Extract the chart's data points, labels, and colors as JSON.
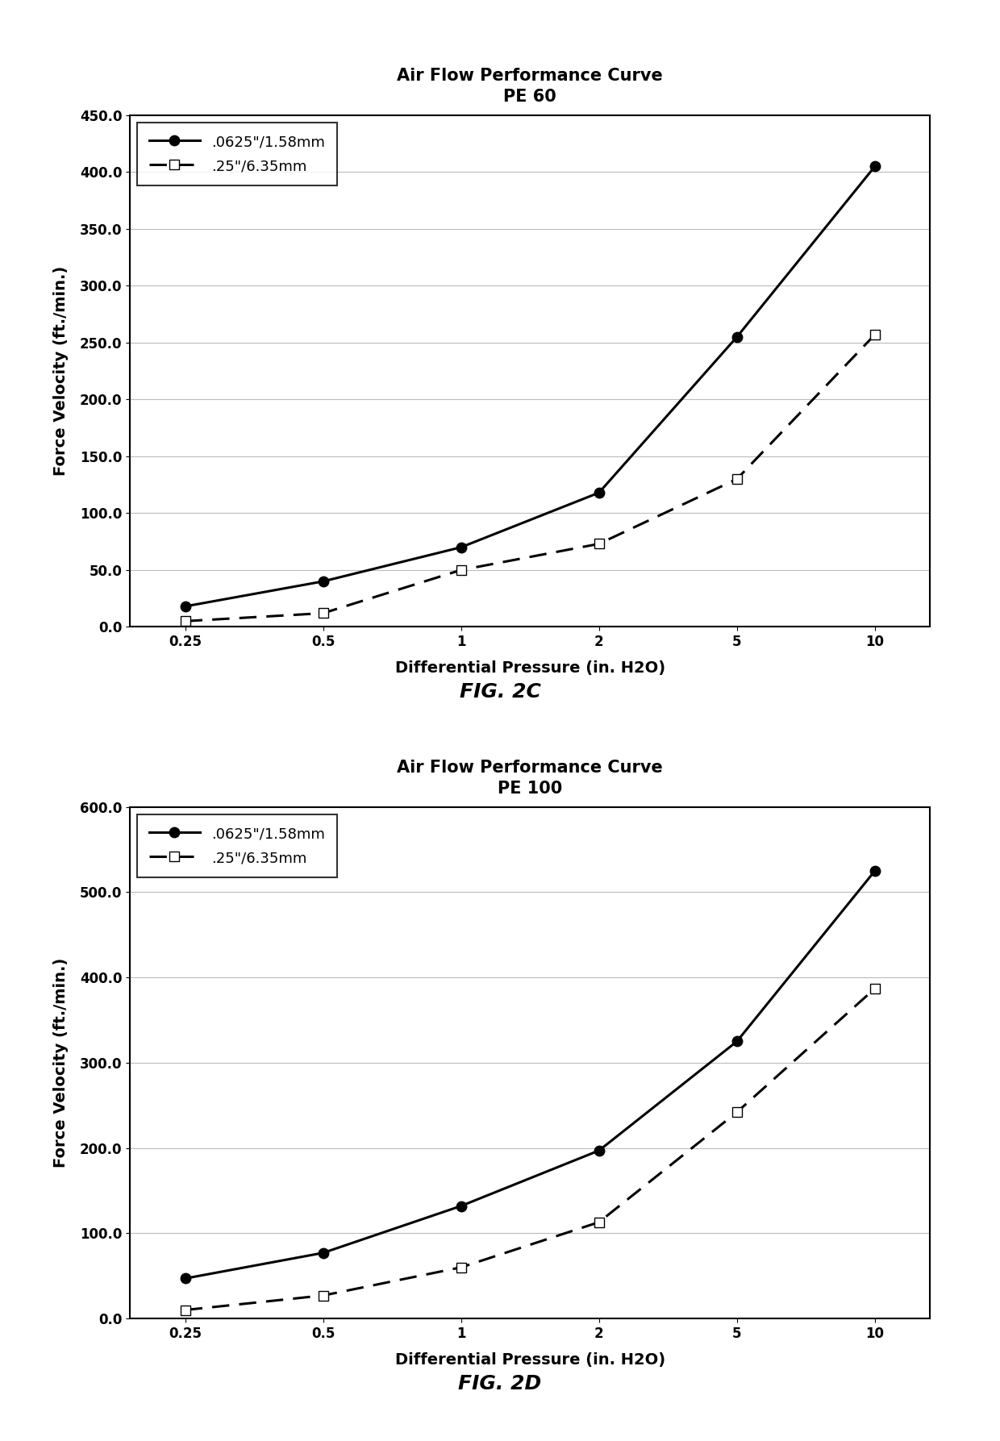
{
  "chart1": {
    "title_line1": "Air Flow Performance Curve",
    "title_line2": "PE 60",
    "xlabel": "Differential Pressure (in. H2O)",
    "ylabel": "Force Velocity (ft./min.)",
    "fig_label": "FIG. 2C",
    "x_values": [
      0.25,
      0.5,
      1,
      2,
      5,
      10
    ],
    "x_tick_labels": [
      "0.25",
      "0.5",
      "1",
      "2",
      "5",
      "10"
    ],
    "series1": {
      "label": ".0625\"/1.58mm",
      "y": [
        18,
        40,
        70,
        118,
        255,
        405
      ],
      "linestyle": "solid",
      "marker": "o",
      "color": "#000000",
      "markersize": 9,
      "markerfacecolor": "#000000"
    },
    "series2": {
      "label": ".25\"/6.35mm",
      "y": [
        5,
        12,
        50,
        73,
        130,
        257
      ],
      "linestyle": "dashed",
      "marker": "s",
      "color": "#000000",
      "markersize": 9,
      "markerfacecolor": "#ffffff"
    },
    "ylim": [
      0,
      450
    ],
    "yticks": [
      0,
      50,
      100,
      150,
      200,
      250,
      300,
      350,
      400,
      450
    ],
    "ytick_labels": [
      "0.0",
      "50.0",
      "100.0",
      "150.0",
      "200.0",
      "250.0",
      "300.0",
      "350.0",
      "400.0",
      "450.0"
    ]
  },
  "chart2": {
    "title_line1": "Air Flow Performance Curve",
    "title_line2": "PE 100",
    "xlabel": "Differential Pressure (in. H2O)",
    "ylabel": "Force Velocity (ft./min.)",
    "fig_label": "FIG. 2D",
    "x_values": [
      0.25,
      0.5,
      1,
      2,
      5,
      10
    ],
    "x_tick_labels": [
      "0.25",
      "0.5",
      "1",
      "2",
      "5",
      "10"
    ],
    "series1": {
      "label": ".0625\"/1.58mm",
      "y": [
        47,
        77,
        132,
        197,
        325,
        525
      ],
      "linestyle": "solid",
      "marker": "o",
      "color": "#000000",
      "markersize": 9,
      "markerfacecolor": "#000000"
    },
    "series2": {
      "label": ".25\"/6.35mm",
      "y": [
        10,
        27,
        60,
        113,
        242,
        387
      ],
      "linestyle": "dashed",
      "marker": "s",
      "color": "#000000",
      "markersize": 9,
      "markerfacecolor": "#ffffff"
    },
    "ylim": [
      0,
      600
    ],
    "yticks": [
      0,
      100,
      200,
      300,
      400,
      500,
      600
    ],
    "ytick_labels": [
      "0.0",
      "100.0",
      "200.0",
      "300.0",
      "400.0",
      "500.0",
      "600.0"
    ]
  },
  "background_color": "#ffffff",
  "grid_color": "#bbbbbb",
  "title_fontsize": 15,
  "label_fontsize": 14,
  "tick_fontsize": 12,
  "legend_fontsize": 13,
  "fig_label_fontsize": 18
}
